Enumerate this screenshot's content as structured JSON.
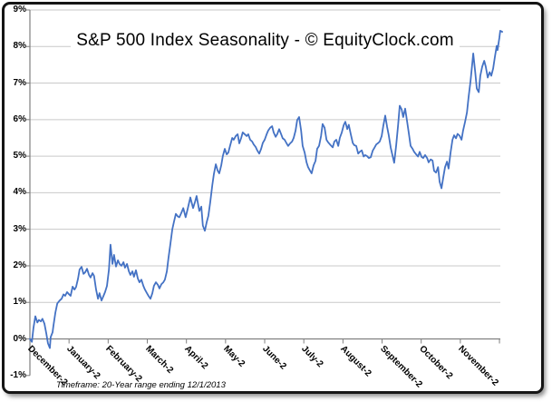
{
  "colors": {
    "line": "#4472C4",
    "grid": "#C9C9C9",
    "axis": "#808080",
    "border": "#151515",
    "text": "#000000",
    "background": "#FFFFFF"
  },
  "chart_data": {
    "type": "line",
    "title": "S&P 500 Index Seasonality - © EquityClock.com",
    "footnote": "Timeframe: 20-Year range ending 12/1/2013",
    "legend": "none",
    "grid": "horizontal-major",
    "ylim": [
      -1,
      9
    ],
    "xlim_months": [
      0,
      12
    ],
    "y_ticks": [
      9,
      8,
      7,
      6,
      5,
      4,
      3,
      2,
      1,
      0,
      -1
    ],
    "y_tick_labels": [
      "9%",
      "8%",
      "7%",
      "6%",
      "5%",
      "4%",
      "3%",
      "2%",
      "1%",
      "0%",
      "-1%"
    ],
    "x_tick_labels": [
      "December-2",
      "January-2",
      "February-2",
      "March-2",
      "April-2",
      "May-2",
      "June-2",
      "July-2",
      "August-2",
      "September-2",
      "October-2",
      "November-2"
    ],
    "series": [
      {
        "units": "percent change since start (x in months from Dec 1)",
        "points": [
          [
            0.0,
            0.0
          ],
          [
            0.05,
            -0.08
          ],
          [
            0.09,
            0.3
          ],
          [
            0.14,
            0.62
          ],
          [
            0.19,
            0.45
          ],
          [
            0.23,
            0.52
          ],
          [
            0.28,
            0.48
          ],
          [
            0.32,
            0.55
          ],
          [
            0.37,
            0.42
          ],
          [
            0.42,
            0.15
          ],
          [
            0.46,
            -0.12
          ],
          [
            0.51,
            -0.25
          ],
          [
            0.53,
            0.05
          ],
          [
            0.58,
            0.18
          ],
          [
            0.6,
            0.35
          ],
          [
            0.65,
            0.72
          ],
          [
            0.7,
            0.97
          ],
          [
            0.76,
            1.05
          ],
          [
            0.81,
            1.1
          ],
          [
            0.86,
            1.22
          ],
          [
            0.9,
            1.18
          ],
          [
            0.95,
            1.28
          ],
          [
            1.0,
            1.22
          ],
          [
            1.04,
            1.18
          ],
          [
            1.09,
            1.43
          ],
          [
            1.14,
            1.35
          ],
          [
            1.18,
            1.42
          ],
          [
            1.23,
            1.65
          ],
          [
            1.27,
            1.9
          ],
          [
            1.32,
            1.97
          ],
          [
            1.37,
            1.78
          ],
          [
            1.41,
            1.82
          ],
          [
            1.46,
            1.92
          ],
          [
            1.51,
            1.75
          ],
          [
            1.55,
            1.68
          ],
          [
            1.6,
            1.8
          ],
          [
            1.64,
            1.72
          ],
          [
            1.69,
            1.35
          ],
          [
            1.74,
            1.1
          ],
          [
            1.78,
            1.25
          ],
          [
            1.83,
            1.05
          ],
          [
            1.88,
            1.18
          ],
          [
            1.92,
            1.28
          ],
          [
            1.97,
            1.45
          ],
          [
            2.02,
            1.9
          ],
          [
            2.06,
            2.58
          ],
          [
            2.11,
            2.05
          ],
          [
            2.15,
            2.3
          ],
          [
            2.2,
            1.98
          ],
          [
            2.25,
            2.15
          ],
          [
            2.29,
            2.05
          ],
          [
            2.34,
            2.0
          ],
          [
            2.39,
            2.1
          ],
          [
            2.43,
            1.95
          ],
          [
            2.48,
            2.05
          ],
          [
            2.53,
            1.85
          ],
          [
            2.57,
            1.75
          ],
          [
            2.62,
            1.85
          ],
          [
            2.66,
            1.7
          ],
          [
            2.71,
            1.88
          ],
          [
            2.76,
            1.65
          ],
          [
            2.8,
            1.55
          ],
          [
            2.85,
            1.62
          ],
          [
            2.9,
            1.45
          ],
          [
            2.94,
            1.35
          ],
          [
            2.99,
            1.25
          ],
          [
            3.03,
            1.18
          ],
          [
            3.08,
            1.1
          ],
          [
            3.13,
            1.25
          ],
          [
            3.17,
            1.45
          ],
          [
            3.22,
            1.55
          ],
          [
            3.27,
            1.48
          ],
          [
            3.31,
            1.38
          ],
          [
            3.36,
            1.5
          ],
          [
            3.41,
            1.55
          ],
          [
            3.45,
            1.62
          ],
          [
            3.5,
            1.85
          ],
          [
            3.54,
            2.2
          ],
          [
            3.59,
            2.6
          ],
          [
            3.64,
            3.0
          ],
          [
            3.68,
            3.2
          ],
          [
            3.73,
            3.42
          ],
          [
            3.78,
            3.35
          ],
          [
            3.82,
            3.33
          ],
          [
            3.87,
            3.45
          ],
          [
            3.92,
            3.58
          ],
          [
            3.98,
            3.33
          ],
          [
            4.03,
            3.55
          ],
          [
            4.1,
            3.87
          ],
          [
            4.17,
            3.58
          ],
          [
            4.22,
            3.75
          ],
          [
            4.26,
            3.91
          ],
          [
            4.33,
            3.5
          ],
          [
            4.38,
            3.62
          ],
          [
            4.42,
            3.1
          ],
          [
            4.47,
            2.96
          ],
          [
            4.52,
            3.2
          ],
          [
            4.56,
            3.37
          ],
          [
            4.61,
            3.75
          ],
          [
            4.66,
            4.2
          ],
          [
            4.7,
            4.5
          ],
          [
            4.75,
            4.78
          ],
          [
            4.8,
            4.6
          ],
          [
            4.84,
            4.53
          ],
          [
            4.89,
            4.75
          ],
          [
            4.93,
            5.0
          ],
          [
            4.98,
            5.2
          ],
          [
            5.03,
            5.05
          ],
          [
            5.07,
            5.1
          ],
          [
            5.12,
            5.3
          ],
          [
            5.17,
            5.5
          ],
          [
            5.21,
            5.45
          ],
          [
            5.26,
            5.55
          ],
          [
            5.31,
            5.6
          ],
          [
            5.35,
            5.35
          ],
          [
            5.4,
            5.5
          ],
          [
            5.44,
            5.65
          ],
          [
            5.49,
            5.6
          ],
          [
            5.54,
            5.55
          ],
          [
            5.58,
            5.6
          ],
          [
            5.63,
            5.45
          ],
          [
            5.68,
            5.4
          ],
          [
            5.72,
            5.32
          ],
          [
            5.77,
            5.25
          ],
          [
            5.81,
            5.16
          ],
          [
            5.86,
            5.07
          ],
          [
            5.91,
            5.2
          ],
          [
            5.95,
            5.36
          ],
          [
            6.0,
            5.45
          ],
          [
            6.05,
            5.6
          ],
          [
            6.09,
            5.7
          ],
          [
            6.14,
            5.78
          ],
          [
            6.19,
            5.82
          ],
          [
            6.23,
            5.65
          ],
          [
            6.28,
            5.53
          ],
          [
            6.32,
            5.6
          ],
          [
            6.37,
            5.74
          ],
          [
            6.42,
            5.6
          ],
          [
            6.46,
            5.49
          ],
          [
            6.51,
            5.45
          ],
          [
            6.56,
            5.35
          ],
          [
            6.6,
            5.28
          ],
          [
            6.65,
            5.35
          ],
          [
            6.7,
            5.4
          ],
          [
            6.74,
            5.5
          ],
          [
            6.79,
            5.7
          ],
          [
            6.83,
            5.99
          ],
          [
            6.88,
            6.07
          ],
          [
            6.93,
            5.7
          ],
          [
            6.97,
            5.28
          ],
          [
            7.02,
            5.1
          ],
          [
            7.07,
            4.83
          ],
          [
            7.11,
            4.7
          ],
          [
            7.16,
            4.6
          ],
          [
            7.2,
            4.53
          ],
          [
            7.25,
            4.75
          ],
          [
            7.3,
            4.87
          ],
          [
            7.34,
            5.2
          ],
          [
            7.39,
            5.28
          ],
          [
            7.44,
            5.55
          ],
          [
            7.48,
            5.88
          ],
          [
            7.53,
            5.78
          ],
          [
            7.58,
            5.45
          ],
          [
            7.62,
            5.38
          ],
          [
            7.67,
            5.32
          ],
          [
            7.74,
            5.24
          ],
          [
            7.78,
            5.4
          ],
          [
            7.83,
            5.45
          ],
          [
            7.88,
            5.28
          ],
          [
            7.92,
            5.5
          ],
          [
            7.97,
            5.65
          ],
          [
            8.02,
            5.85
          ],
          [
            8.06,
            5.94
          ],
          [
            8.11,
            5.74
          ],
          [
            8.15,
            5.86
          ],
          [
            8.2,
            5.6
          ],
          [
            8.25,
            5.36
          ],
          [
            8.29,
            5.3
          ],
          [
            8.34,
            5.28
          ],
          [
            8.39,
            5.07
          ],
          [
            8.43,
            5.12
          ],
          [
            8.48,
            5.16
          ],
          [
            8.53,
            4.99
          ],
          [
            8.57,
            5.03
          ],
          [
            8.62,
            5.0
          ],
          [
            8.66,
            4.95
          ],
          [
            8.71,
            4.97
          ],
          [
            8.76,
            5.15
          ],
          [
            8.8,
            5.22
          ],
          [
            8.85,
            5.32
          ],
          [
            8.9,
            5.36
          ],
          [
            8.94,
            5.4
          ],
          [
            8.99,
            5.55
          ],
          [
            9.03,
            5.82
          ],
          [
            9.08,
            6.11
          ],
          [
            9.13,
            5.8
          ],
          [
            9.17,
            5.57
          ],
          [
            9.22,
            5.24
          ],
          [
            9.27,
            5.0
          ],
          [
            9.31,
            4.82
          ],
          [
            9.36,
            5.3
          ],
          [
            9.41,
            5.85
          ],
          [
            9.45,
            6.38
          ],
          [
            9.5,
            6.28
          ],
          [
            9.54,
            6.07
          ],
          [
            9.59,
            6.3
          ],
          [
            9.64,
            5.94
          ],
          [
            9.68,
            5.65
          ],
          [
            9.73,
            5.28
          ],
          [
            9.78,
            5.2
          ],
          [
            9.82,
            5.12
          ],
          [
            9.87,
            5.05
          ],
          [
            9.92,
            4.99
          ],
          [
            9.96,
            5.12
          ],
          [
            10.01,
            4.98
          ],
          [
            10.05,
            4.95
          ],
          [
            10.1,
            5.03
          ],
          [
            10.15,
            4.95
          ],
          [
            10.19,
            4.83
          ],
          [
            10.24,
            4.91
          ],
          [
            10.29,
            4.88
          ],
          [
            10.33,
            4.6
          ],
          [
            10.38,
            4.55
          ],
          [
            10.43,
            4.7
          ],
          [
            10.47,
            4.3
          ],
          [
            10.52,
            4.12
          ],
          [
            10.56,
            4.4
          ],
          [
            10.61,
            4.7
          ],
          [
            10.66,
            4.85
          ],
          [
            10.7,
            4.66
          ],
          [
            10.75,
            5.1
          ],
          [
            10.8,
            5.45
          ],
          [
            10.84,
            5.57
          ],
          [
            10.89,
            5.49
          ],
          [
            10.93,
            5.61
          ],
          [
            10.98,
            5.56
          ],
          [
            11.03,
            5.45
          ],
          [
            11.07,
            5.7
          ],
          [
            11.12,
            5.94
          ],
          [
            11.17,
            6.2
          ],
          [
            11.21,
            6.6
          ],
          [
            11.26,
            7.05
          ],
          [
            11.31,
            7.6
          ],
          [
            11.33,
            7.81
          ],
          [
            11.38,
            7.3
          ],
          [
            11.42,
            6.85
          ],
          [
            11.47,
            6.75
          ],
          [
            11.51,
            7.2
          ],
          [
            11.56,
            7.45
          ],
          [
            11.61,
            7.61
          ],
          [
            11.65,
            7.45
          ],
          [
            11.7,
            7.15
          ],
          [
            11.75,
            7.3
          ],
          [
            11.79,
            7.2
          ],
          [
            11.84,
            7.4
          ],
          [
            11.88,
            7.7
          ],
          [
            11.93,
            8.02
          ],
          [
            11.95,
            7.9
          ],
          [
            12.0,
            8.25
          ],
          [
            12.02,
            8.43
          ],
          [
            12.07,
            8.4
          ]
        ]
      }
    ]
  }
}
